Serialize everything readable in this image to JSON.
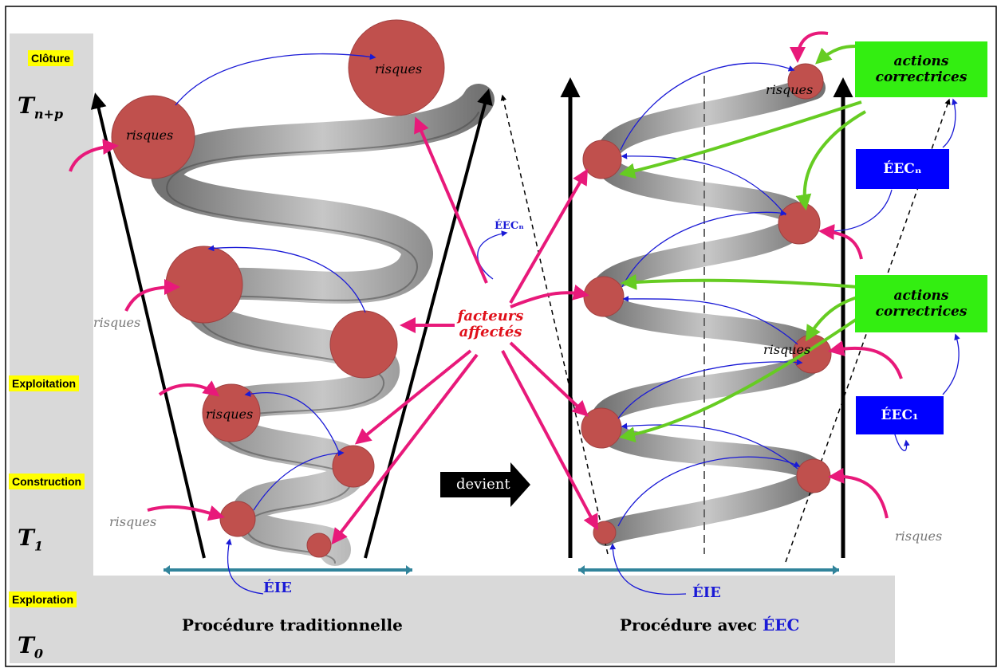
{
  "phases": {
    "cloture": "Clôture",
    "exploitation": "Exploitation",
    "construction": "Construction",
    "exploration": "Exploration"
  },
  "times": {
    "tnp_base": "T",
    "tnp_sub": "n+p",
    "t1_base": "T",
    "t1_sub": "1",
    "t0_base": "T",
    "t0_sub": "0"
  },
  "risk_label": "risques",
  "facteurs": {
    "line1": "facteurs",
    "line2": "affectés"
  },
  "devient": "devient",
  "eie": "ÉIE",
  "eec_small": "ÉECₙ",
  "actions": {
    "line1": "actions",
    "line2": "correctrices"
  },
  "eec_boxes": {
    "top": "ÉECₙ",
    "bottom": "ÉEC₁"
  },
  "procedures": {
    "traditional": "Procédure traditionnelle",
    "eec_prefix": "Procédure avec ",
    "eec_suffix": "ÉEC"
  },
  "colors": {
    "circle": "#c0504d",
    "pink_arrow": "#e8197a",
    "green_arrow": "#66cc22",
    "blue_arrow": "#1a1ad6",
    "green_box": "#33ee11",
    "blue_box": "#0000ff",
    "sidebar": "#d9d9d9",
    "teal_line": "#31849b"
  }
}
